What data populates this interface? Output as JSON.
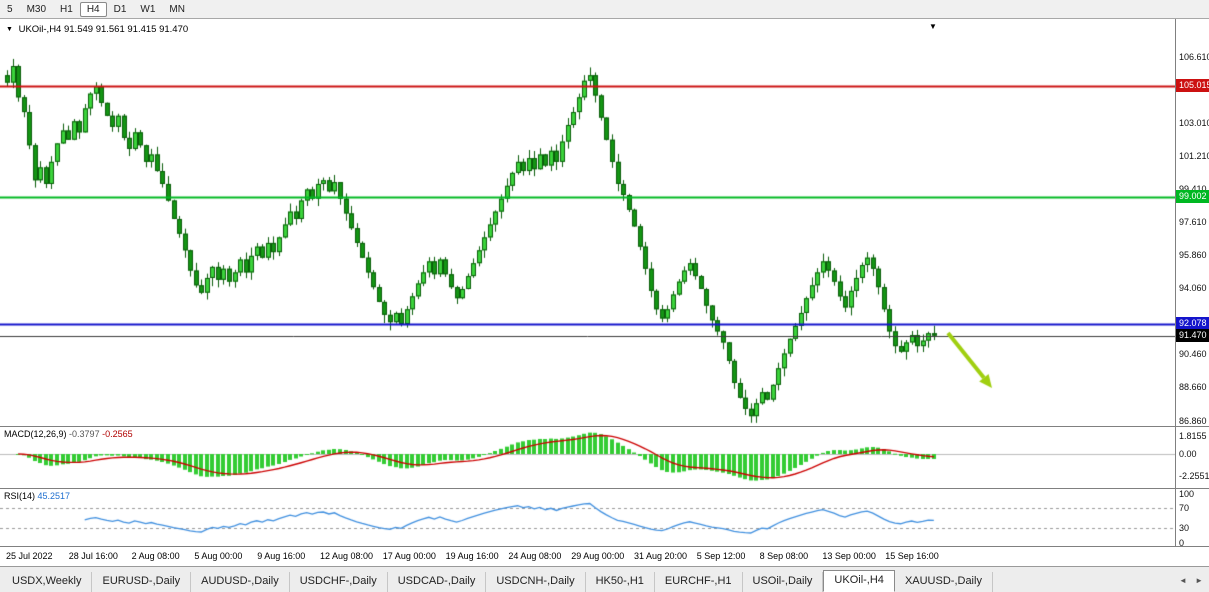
{
  "toolbar": {
    "periods": [
      {
        "label": "5",
        "active": false
      },
      {
        "label": "M30",
        "active": false
      },
      {
        "label": "H1",
        "active": false
      },
      {
        "label": "H4",
        "active": true
      },
      {
        "label": "D1",
        "active": false
      },
      {
        "label": "W1",
        "active": false
      },
      {
        "label": "MN",
        "active": false
      }
    ]
  },
  "chart": {
    "title": {
      "symbol": "UKOil-,H4",
      "open": "91.549",
      "high": "91.561",
      "low": "91.415",
      "close": "91.470"
    },
    "price_axis": {
      "ticks": [
        "106.610",
        "103.010",
        "101.210",
        "99.410",
        "97.610",
        "95.860",
        "94.060",
        "90.460",
        "88.660",
        "86.860"
      ],
      "badges": [
        {
          "text": "105.015",
          "color": "#cc1111"
        },
        {
          "text": "99.002",
          "color": "#00b822"
        },
        {
          "text": "92.078",
          "color": "#1414cc"
        },
        {
          "text": "91.470",
          "color": "#000000"
        }
      ]
    },
    "levels": [
      {
        "price": 105.015,
        "color": "#cc1111",
        "width": 2
      },
      {
        "price": 99.002,
        "color": "#00b822",
        "width": 2
      },
      {
        "price": 92.078,
        "color": "#1414cc",
        "width": 2
      },
      {
        "price": 91.47,
        "color": "#3a3a3a",
        "width": 1
      }
    ],
    "colors": {
      "bull": "#3bd33b",
      "bear": "#149414",
      "wick": "#0a5d0a",
      "macd_hist": "#33cc33",
      "macd_signal": "#cc0000",
      "rsi_line": "#3f8fdf",
      "arrow": "#a0cf10"
    }
  },
  "macd": {
    "label": "MACD(12,26,9)",
    "value1": "-0.3797",
    "value2": "-0.2565",
    "scale": [
      "1.8155",
      "0.00",
      "-2.2551"
    ]
  },
  "rsi": {
    "label": "RSI(14)",
    "value": "45.2517",
    "scale": [
      "100",
      "70",
      "30",
      "0"
    ],
    "levels": [
      70,
      30
    ]
  },
  "date_axis": [
    "25 Jul 2022",
    "28 Jul 16:00",
    "2 Aug 08:00",
    "5 Aug 00:00",
    "9 Aug 16:00",
    "12 Aug 08:00",
    "17 Aug 00:00",
    "19 Aug 16:00",
    "24 Aug 08:00",
    "29 Aug 00:00",
    "31 Aug 20:00",
    "5 Sep 12:00",
    "8 Sep 08:00",
    "13 Sep 00:00",
    "15 Sep 16:00"
  ],
  "tabs": [
    {
      "label": "USDX,Weekly",
      "active": false
    },
    {
      "label": "EURUSD-,Daily",
      "active": false
    },
    {
      "label": "AUDUSD-,Daily",
      "active": false
    },
    {
      "label": "USDCHF-,Daily",
      "active": false
    },
    {
      "label": "USDCAD-,Daily",
      "active": false
    },
    {
      "label": "USDCNH-,Daily",
      "active": false
    },
    {
      "label": "HK50-,H1",
      "active": false
    },
    {
      "label": "EURCHF-,H1",
      "active": false
    },
    {
      "label": "USOil-,Daily",
      "active": false
    },
    {
      "label": "UKOil-,H4",
      "active": true
    },
    {
      "label": "XAUUSD-,Daily",
      "active": false
    }
  ],
  "chart_data": {
    "type": "candlestick",
    "symbol": "UKOil-",
    "timeframe": "H4",
    "title": "UKOil-,H4",
    "ohlc_display": [
      91.549,
      91.561,
      91.415,
      91.47
    ],
    "y_range": [
      86.86,
      106.61
    ],
    "hlines": [
      105.015,
      99.002,
      92.078,
      91.47
    ],
    "macd_values": [
      -0.3797,
      -0.2565
    ],
    "rsi_value": 45.2517,
    "closes": [
      105.2,
      106.1,
      104.4,
      103.6,
      101.8,
      99.9,
      100.6,
      99.7,
      100.9,
      101.9,
      102.6,
      102.1,
      103.1,
      102.5,
      103.8,
      104.6,
      105.0,
      104.1,
      103.4,
      102.8,
      103.4,
      102.2,
      101.6,
      102.5,
      101.8,
      100.9,
      101.3,
      100.4,
      99.7,
      98.8,
      97.8,
      97.0,
      96.1,
      95.0,
      94.2,
      93.8,
      94.6,
      95.2,
      94.5,
      95.1,
      94.4,
      94.9,
      95.6,
      94.9,
      95.8,
      96.3,
      95.7,
      96.5,
      96.0,
      96.8,
      97.5,
      98.2,
      97.8,
      98.8,
      99.4,
      98.9,
      99.7,
      99.9,
      99.3,
      99.8,
      98.9,
      98.1,
      97.3,
      96.5,
      95.7,
      94.9,
      94.1,
      93.3,
      92.6,
      92.2,
      92.7,
      92.1,
      92.9,
      93.6,
      94.3,
      94.9,
      95.5,
      94.8,
      95.6,
      94.8,
      94.1,
      93.5,
      94.0,
      94.7,
      95.4,
      96.1,
      96.8,
      97.5,
      98.2,
      98.9,
      99.6,
      100.3,
      100.9,
      100.4,
      101.1,
      100.5,
      101.3,
      100.7,
      101.5,
      100.9,
      102.0,
      102.9,
      103.6,
      104.4,
      105.3,
      105.6,
      104.5,
      103.3,
      102.1,
      100.9,
      99.7,
      99.1,
      98.3,
      97.4,
      96.3,
      95.1,
      93.9,
      92.9,
      92.4,
      92.9,
      93.7,
      94.4,
      95.0,
      95.4,
      94.7,
      94.0,
      93.1,
      92.3,
      91.7,
      91.1,
      90.1,
      88.9,
      88.1,
      87.5,
      87.1,
      87.8,
      88.4,
      88.0,
      88.8,
      89.7,
      90.5,
      91.3,
      92.0,
      92.7,
      93.5,
      94.2,
      94.9,
      95.5,
      95.0,
      94.4,
      93.6,
      93.0,
      93.9,
      94.6,
      95.3,
      95.7,
      95.1,
      94.1,
      92.9,
      91.7,
      90.9,
      90.6,
      91.1,
      91.5,
      90.9,
      91.2,
      91.6,
      91.47
    ]
  }
}
